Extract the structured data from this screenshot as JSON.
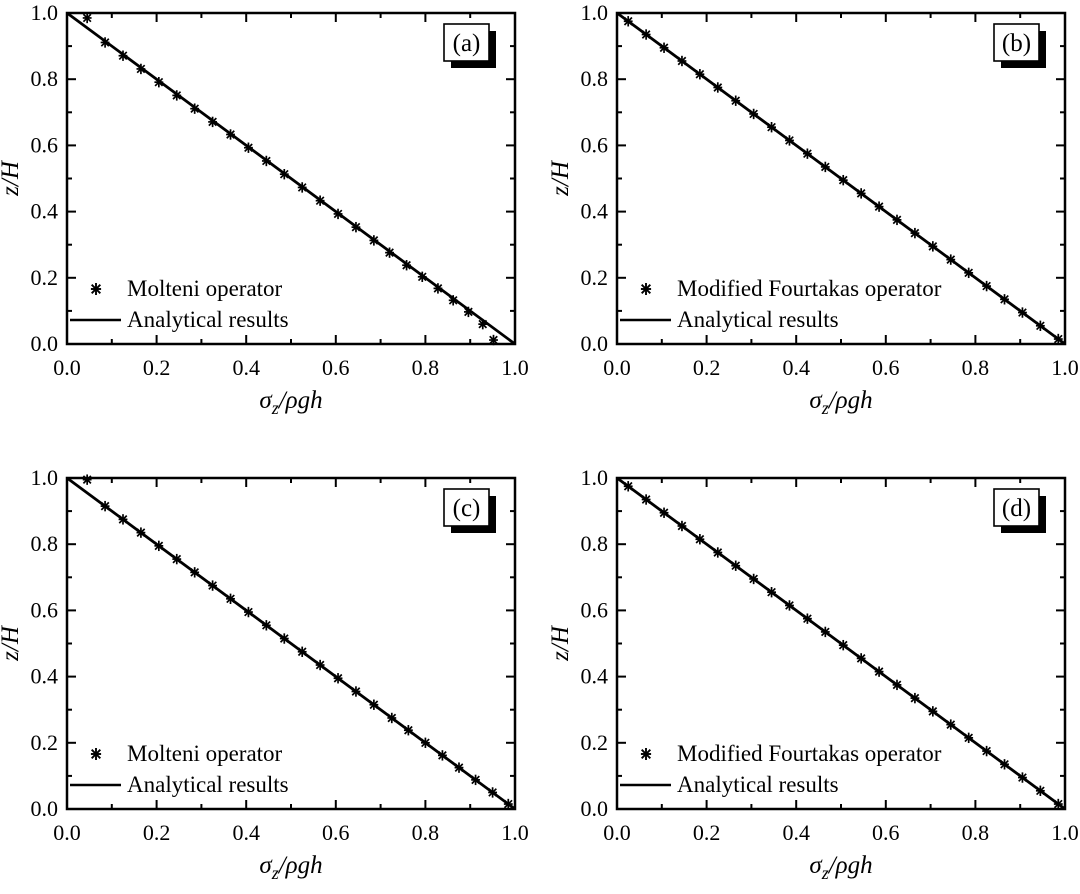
{
  "figure": {
    "background": "#ffffff",
    "ink_color": "#000000",
    "xlabel": {
      "base": "σ",
      "sub": "z",
      "rest": "/ρgh"
    },
    "ylabel": "z/H",
    "xlim": [
      0,
      1
    ],
    "ylim": [
      0,
      1
    ],
    "xticks_major": [
      0.0,
      0.2,
      0.4,
      0.6,
      0.8,
      1.0
    ],
    "xticks_minor": [
      0.1,
      0.3,
      0.5,
      0.7,
      0.9
    ],
    "yticks_major": [
      0.0,
      0.2,
      0.4,
      0.6,
      0.8,
      1.0
    ],
    "yticks_minor": [
      0.1,
      0.3,
      0.5,
      0.7,
      0.9
    ],
    "tick_decimals": 1,
    "grid": false,
    "legend_position": "lower-left"
  },
  "chart_data": [
    {
      "id": "a",
      "tag": "(a)",
      "type": "scatter",
      "xlabel": "σz/ρgh",
      "ylabel": "z/H",
      "xlim": [
        0,
        1
      ],
      "ylim": [
        0,
        1
      ],
      "legend_position": "lower-left",
      "series": [
        {
          "name": "Molteni operator",
          "type": "scatter",
          "marker": "asterisk",
          "x": [
            0.045,
            0.085,
            0.125,
            0.165,
            0.205,
            0.245,
            0.285,
            0.325,
            0.365,
            0.405,
            0.445,
            0.485,
            0.525,
            0.565,
            0.605,
            0.645,
            0.685,
            0.72,
            0.758,
            0.793,
            0.828,
            0.862,
            0.896,
            0.928,
            0.952
          ],
          "y": [
            0.985,
            0.911,
            0.871,
            0.831,
            0.791,
            0.751,
            0.711,
            0.671,
            0.633,
            0.593,
            0.553,
            0.513,
            0.473,
            0.433,
            0.393,
            0.353,
            0.313,
            0.276,
            0.238,
            0.203,
            0.168,
            0.132,
            0.097,
            0.06,
            0.012
          ]
        },
        {
          "name": "Analytical results",
          "type": "line",
          "x": [
            0,
            1
          ],
          "y": [
            1,
            0
          ]
        }
      ]
    },
    {
      "id": "b",
      "tag": "(b)",
      "type": "scatter",
      "xlabel": "σz/ρgh",
      "ylabel": "z/H",
      "xlim": [
        0,
        1
      ],
      "ylim": [
        0,
        1
      ],
      "legend_position": "lower-left",
      "series": [
        {
          "name": "Modified Fourtakas operator",
          "type": "scatter",
          "marker": "asterisk",
          "x": [
            0.025,
            0.065,
            0.105,
            0.145,
            0.185,
            0.225,
            0.265,
            0.305,
            0.345,
            0.385,
            0.425,
            0.465,
            0.505,
            0.545,
            0.585,
            0.625,
            0.665,
            0.705,
            0.745,
            0.785,
            0.825,
            0.865,
            0.905,
            0.945,
            0.985
          ],
          "y": [
            0.975,
            0.935,
            0.895,
            0.855,
            0.815,
            0.775,
            0.735,
            0.695,
            0.655,
            0.615,
            0.575,
            0.535,
            0.495,
            0.455,
            0.415,
            0.375,
            0.335,
            0.295,
            0.255,
            0.215,
            0.175,
            0.135,
            0.095,
            0.055,
            0.015
          ]
        },
        {
          "name": "Analytical results",
          "type": "line",
          "x": [
            0,
            1
          ],
          "y": [
            1,
            0
          ]
        }
      ]
    },
    {
      "id": "c",
      "tag": "(c)",
      "type": "scatter",
      "xlabel": "σz/ρgh",
      "ylabel": "z/H",
      "xlim": [
        0,
        1
      ],
      "ylim": [
        0,
        1
      ],
      "legend_position": "lower-left",
      "series": [
        {
          "name": "Molteni operator",
          "type": "scatter",
          "marker": "asterisk",
          "x": [
            0.045,
            0.085,
            0.125,
            0.165,
            0.205,
            0.245,
            0.285,
            0.325,
            0.365,
            0.405,
            0.445,
            0.485,
            0.525,
            0.565,
            0.605,
            0.645,
            0.685,
            0.725,
            0.762,
            0.8,
            0.838,
            0.875,
            0.912,
            0.95,
            0.985
          ],
          "y": [
            0.995,
            0.915,
            0.875,
            0.835,
            0.795,
            0.755,
            0.715,
            0.675,
            0.635,
            0.595,
            0.555,
            0.515,
            0.475,
            0.435,
            0.395,
            0.355,
            0.315,
            0.275,
            0.238,
            0.2,
            0.162,
            0.125,
            0.088,
            0.05,
            0.015
          ]
        },
        {
          "name": "Analytical results",
          "type": "line",
          "x": [
            0,
            1
          ],
          "y": [
            1,
            0
          ]
        }
      ]
    },
    {
      "id": "d",
      "tag": "(d)",
      "type": "scatter",
      "xlabel": "σz/ρgh",
      "ylabel": "z/H",
      "xlim": [
        0,
        1
      ],
      "ylim": [
        0,
        1
      ],
      "legend_position": "lower-left",
      "series": [
        {
          "name": "Modified Fourtakas operator",
          "type": "scatter",
          "marker": "asterisk",
          "x": [
            0.025,
            0.065,
            0.105,
            0.145,
            0.185,
            0.225,
            0.265,
            0.305,
            0.345,
            0.385,
            0.425,
            0.465,
            0.505,
            0.545,
            0.585,
            0.625,
            0.665,
            0.705,
            0.745,
            0.785,
            0.825,
            0.865,
            0.905,
            0.945,
            0.985
          ],
          "y": [
            0.975,
            0.935,
            0.895,
            0.855,
            0.815,
            0.775,
            0.735,
            0.695,
            0.655,
            0.615,
            0.575,
            0.535,
            0.495,
            0.455,
            0.415,
            0.375,
            0.335,
            0.295,
            0.255,
            0.215,
            0.175,
            0.135,
            0.095,
            0.055,
            0.015
          ]
        },
        {
          "name": "Analytical results",
          "type": "line",
          "x": [
            0,
            1
          ],
          "y": [
            1,
            0
          ]
        }
      ]
    }
  ]
}
